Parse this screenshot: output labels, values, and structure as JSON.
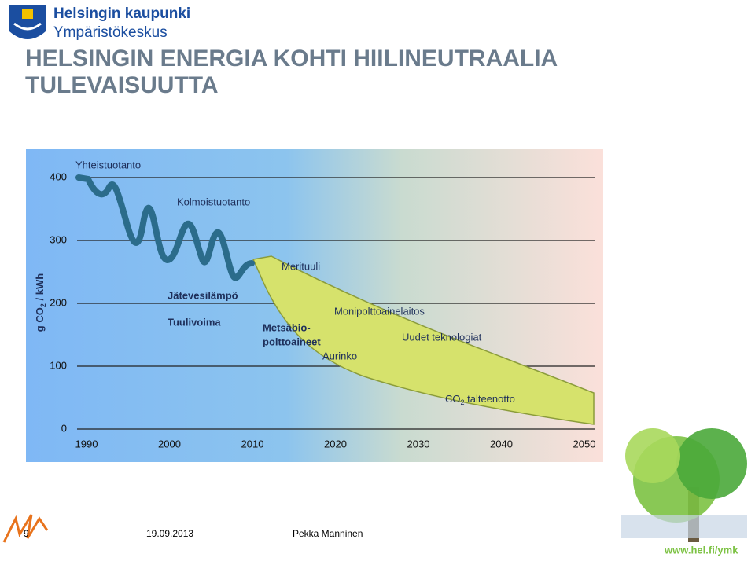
{
  "header": {
    "org": "Helsingin kaupunki",
    "unit": "Ympäristökeskus"
  },
  "title": [
    "HELSINGIN ENERGIA KOHTI HIILINEUTRAALIA",
    "TULEVAISUUTTA"
  ],
  "chart": {
    "y_label": {
      "pre": "g CO",
      "sub": "2",
      "post": " / kWh"
    },
    "ylim": [
      0,
      400
    ],
    "yticks": [
      0,
      100,
      200,
      300,
      400
    ],
    "xlim": [
      1990,
      2050
    ],
    "xticks": [
      1990,
      2000,
      2010,
      2020,
      2030,
      2040,
      2050
    ],
    "labels": [
      "Yhteistuotanto",
      "Kolmoistuotanto",
      "Merituuli",
      "Jätevesilämpö",
      "Tuulivoima",
      "Monipolttoainelaitos",
      "Metsäbio-",
      "polttoaineet",
      "Uudet teknologiat",
      "Aurinko"
    ],
    "capture": {
      "pre": "CO",
      "sub": "2",
      "post": " talteenotto"
    }
  },
  "footer": {
    "page": "9",
    "date": "19.09.2013",
    "author": "Pekka Manninen",
    "url": "www.hel.fi/ymk"
  }
}
